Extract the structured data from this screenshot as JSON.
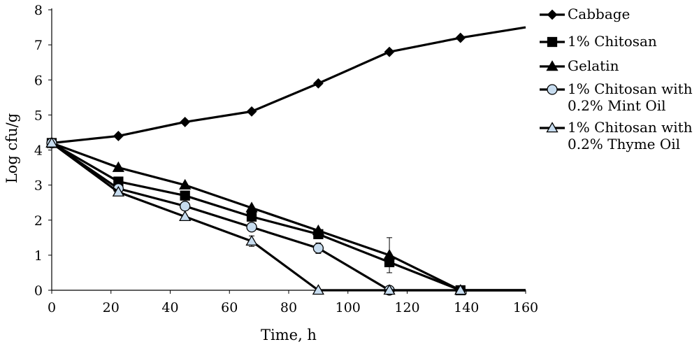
{
  "chart_data": {
    "type": "line",
    "xlabel": "Time, h",
    "ylabel": "Log cfu/g",
    "xlim": [
      0,
      160
    ],
    "ylim": [
      0,
      8
    ],
    "x_ticks": [
      "0",
      "20",
      "40",
      "60",
      "80",
      "100",
      "120",
      "140",
      "160"
    ],
    "y_ticks": [
      "0",
      "1",
      "2",
      "3",
      "4",
      "5",
      "6",
      "7",
      "8"
    ],
    "grid": false,
    "legend_position": "right",
    "series": [
      {
        "name": "Cabbage",
        "marker": "diamond",
        "marker_fill": "#000000",
        "x": [
          0,
          22.5,
          45,
          67.5,
          90,
          114,
          138,
          160
        ],
        "y": [
          4.2,
          4.4,
          4.8,
          5.1,
          5.9,
          6.8,
          7.2,
          7.5
        ],
        "marker_count": 7
      },
      {
        "name": "1% Chitosan",
        "marker": "square",
        "marker_fill": "#000000",
        "x": [
          0,
          22.5,
          45,
          67.5,
          90,
          114,
          138,
          160
        ],
        "y": [
          4.2,
          3.1,
          2.7,
          2.1,
          1.6,
          0.8,
          0,
          0
        ],
        "marker_count": 7
      },
      {
        "name": "Gelatin",
        "marker": "triangle",
        "marker_fill": "#000000",
        "x": [
          0,
          22.5,
          45,
          67.5,
          90,
          114,
          138,
          160
        ],
        "y": [
          4.2,
          3.5,
          3.0,
          2.35,
          1.7,
          1.0,
          0,
          0
        ],
        "marker_count": 7,
        "error_bars": [
          {
            "x": 114,
            "y": 1.0,
            "err": 0.5
          }
        ]
      },
      {
        "name": "1% Chitosan with 0.2% Mint Oil",
        "legend_lines": [
          "1% Chitosan with",
          "0.2% Mint Oil"
        ],
        "marker": "circle",
        "marker_fill": "#c7dcef",
        "x": [
          0,
          22.5,
          45,
          67.5,
          90,
          114,
          138,
          160
        ],
        "y": [
          4.2,
          2.9,
          2.4,
          1.8,
          1.2,
          0,
          0,
          0
        ],
        "marker_count": 6,
        "error_bars": [
          {
            "x": 90,
            "y": 1.2,
            "err": 0.15
          }
        ]
      },
      {
        "name": "1% Chitosan with 0.2% Thyme Oil",
        "legend_lines": [
          "1% Chitosan with",
          "0.2% Thyme Oil"
        ],
        "marker": "triangle",
        "marker_fill": "#c7dcef",
        "x": [
          0,
          22.5,
          45,
          67.5,
          90,
          114,
          138,
          160
        ],
        "y": [
          4.2,
          2.8,
          2.1,
          1.4,
          0,
          0,
          0,
          0
        ],
        "marker_count": 7,
        "error_bars": [
          {
            "x": 67.5,
            "y": 1.4,
            "err": 0.15
          }
        ]
      }
    ]
  }
}
